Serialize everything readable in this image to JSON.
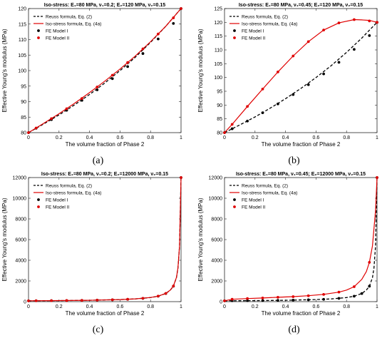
{
  "figure": {
    "captions": [
      "(a)",
      "(b)",
      "(c)",
      "(d)"
    ]
  },
  "chart_data": [
    {
      "type": "line",
      "title": "Iso-stress: E₁=80 MPa, ν₁=0.2; E₂=120 MPa, ν₂=0.15",
      "xlabel": "The volume fraction of Phase 2",
      "ylabel": "Effective Young's modulus (MPa)",
      "xlim": [
        0,
        1
      ],
      "ylim": [
        80,
        120
      ],
      "xticks": [
        0,
        0.2,
        0.4,
        0.6,
        0.8,
        1
      ],
      "xtick_labels": [
        "0",
        "0.2",
        "0.4",
        "0.6",
        "0.8",
        "1"
      ],
      "yticks": [
        80,
        85,
        90,
        95,
        100,
        105,
        110,
        115,
        120
      ],
      "ytick_labels": [
        "80",
        "85",
        "90",
        "95",
        "100",
        "105",
        "110",
        "115",
        "120"
      ],
      "grid": false,
      "legend_position": "top-left",
      "series": [
        {
          "name": "Reuss formula, Eq. (2)",
          "style": "dashed",
          "marker": "none",
          "color": "#000000",
          "x": [
            0,
            0.1,
            0.2,
            0.3,
            0.4,
            0.5,
            0.6,
            0.7,
            0.8,
            0.9,
            1
          ],
          "y": [
            80,
            82.8,
            85.7,
            88.9,
            92.3,
            96.0,
            100.0,
            104.3,
            109.1,
            114.3,
            120
          ]
        },
        {
          "name": "Iso-stress formula, Eq. (4a)",
          "style": "solid",
          "marker": "none",
          "color": "#e00000",
          "x": [
            0,
            0.1,
            0.2,
            0.3,
            0.4,
            0.5,
            0.6,
            0.7,
            0.8,
            0.9,
            1
          ],
          "y": [
            80,
            83.0,
            86.1,
            89.4,
            92.9,
            96.6,
            100.5,
            104.7,
            109.3,
            114.3,
            120
          ]
        },
        {
          "name": "FE Model I",
          "style": "none",
          "marker": "circle",
          "color": "#000000",
          "x": [
            0,
            0.05,
            0.15,
            0.25,
            0.35,
            0.45,
            0.55,
            0.65,
            0.75,
            0.85,
            0.95,
            1
          ],
          "y": [
            80,
            81.4,
            84.2,
            87.2,
            90.4,
            93.8,
            97.4,
            101.3,
            105.5,
            110.2,
            115.2,
            120
          ]
        },
        {
          "name": "FE Model II",
          "style": "none",
          "marker": "circle",
          "color": "#e00000",
          "x": [
            0,
            0.05,
            0.15,
            0.25,
            0.35,
            0.45,
            0.55,
            0.65,
            0.75,
            0.85,
            0.95,
            1
          ],
          "y": [
            80,
            81.5,
            84.5,
            87.7,
            91.0,
            94.7,
            98.5,
            102.6,
            107.0,
            111.8,
            117.0,
            120
          ]
        }
      ]
    },
    {
      "type": "line",
      "title": "Iso-stress: E₁=80 MPa, ν₁=0.45; E₂=120 MPa, ν₂=0.15",
      "xlabel": "The volume fraction of Phase 2",
      "ylabel": "Effective Young's modulus (MPa)",
      "xlim": [
        0,
        1
      ],
      "ylim": [
        80,
        125
      ],
      "xticks": [
        0,
        0.2,
        0.4,
        0.6,
        0.8,
        1
      ],
      "xtick_labels": [
        "0",
        "0.2",
        "0.4",
        "0.6",
        "0.8",
        "1"
      ],
      "yticks": [
        80,
        85,
        90,
        95,
        100,
        105,
        110,
        115,
        120,
        125
      ],
      "ytick_labels": [
        "80",
        "85",
        "90",
        "95",
        "100",
        "105",
        "110",
        "115",
        "120",
        "125"
      ],
      "grid": false,
      "legend_position": "top-left",
      "series": [
        {
          "name": "Reuss formula, Eq. (2)",
          "style": "dashed",
          "marker": "none",
          "color": "#000000",
          "x": [
            0,
            0.1,
            0.2,
            0.3,
            0.4,
            0.5,
            0.6,
            0.7,
            0.8,
            0.9,
            1
          ],
          "y": [
            80,
            82.8,
            85.7,
            88.9,
            92.3,
            96.0,
            100.0,
            104.3,
            109.1,
            114.3,
            120
          ]
        },
        {
          "name": "Iso-stress formula, Eq. (4a)",
          "style": "solid",
          "marker": "none",
          "color": "#e00000",
          "x": [
            0,
            0.05,
            0.15,
            0.25,
            0.35,
            0.45,
            0.55,
            0.65,
            0.75,
            0.85,
            0.9,
            0.95,
            1
          ],
          "y": [
            80,
            83.0,
            89.5,
            95.8,
            102.0,
            107.8,
            113.0,
            117.2,
            119.8,
            121.0,
            120.9,
            120.7,
            120
          ]
        },
        {
          "name": "FE Model I",
          "style": "none",
          "marker": "circle",
          "color": "#000000",
          "x": [
            0,
            0.05,
            0.15,
            0.25,
            0.35,
            0.45,
            0.55,
            0.65,
            0.75,
            0.85,
            0.95,
            1
          ],
          "y": [
            80,
            81.4,
            84.2,
            87.2,
            90.4,
            93.8,
            97.4,
            101.3,
            105.5,
            110.2,
            115.2,
            120
          ]
        },
        {
          "name": "FE Model II",
          "style": "none",
          "marker": "circle",
          "color": "#e00000",
          "x": [
            0,
            0.05,
            0.15,
            0.25,
            0.35,
            0.45,
            0.55,
            0.65,
            0.75,
            0.85,
            0.95,
            1
          ],
          "y": [
            80,
            83.0,
            89.5,
            95.8,
            102.0,
            107.8,
            113.0,
            117.2,
            119.8,
            121.0,
            120.5,
            120
          ]
        }
      ]
    },
    {
      "type": "line",
      "title": "Iso-stress: E₁=80 MPa, ν₁=0.2; E₂=12000 MPa, ν₂=0.15",
      "xlabel": "The volume fraction of Phase 2",
      "ylabel": "Effective Young's modulus (MPa)",
      "xlim": [
        0,
        1
      ],
      "ylim": [
        0,
        12000
      ],
      "xticks": [
        0,
        0.2,
        0.4,
        0.6,
        0.8,
        1
      ],
      "xtick_labels": [
        "0",
        "0.2",
        "0.4",
        "0.6",
        "0.8",
        "1"
      ],
      "yticks": [
        0,
        2000,
        4000,
        6000,
        8000,
        10000,
        12000
      ],
      "ytick_labels": [
        "0",
        "2000",
        "4000",
        "6000",
        "8000",
        "10000",
        "12000"
      ],
      "grid": false,
      "legend_position": "top-left",
      "series": [
        {
          "name": "Reuss formula, Eq. (2)",
          "style": "dashed",
          "marker": "none",
          "color": "#000000",
          "x": [
            0,
            0.2,
            0.4,
            0.6,
            0.7,
            0.8,
            0.85,
            0.9,
            0.93,
            0.95,
            0.97,
            0.98,
            0.99,
            1
          ],
          "y": [
            80,
            100,
            133,
            199,
            265,
            396,
            527,
            786,
            1117,
            1494,
            2325,
            3257,
            5370,
            12000
          ]
        },
        {
          "name": "Iso-stress formula, Eq. (4a)",
          "style": "solid",
          "marker": "none",
          "color": "#e00000",
          "x": [
            0,
            0.2,
            0.4,
            0.6,
            0.7,
            0.8,
            0.85,
            0.9,
            0.93,
            0.95,
            0.97,
            0.98,
            0.99,
            1
          ],
          "y": [
            80,
            101,
            134,
            201,
            268,
            400,
            532,
            793,
            1127,
            1508,
            2345,
            3280,
            5400,
            12000
          ]
        },
        {
          "name": "FE Model I",
          "style": "none",
          "marker": "circle",
          "color": "#000000",
          "x": [
            0,
            0.05,
            0.15,
            0.25,
            0.35,
            0.45,
            0.55,
            0.65,
            0.75,
            0.85,
            0.9,
            0.95,
            1
          ],
          "y": [
            80,
            84,
            94,
            106,
            122,
            144,
            176,
            226,
            316,
            527,
            786,
            1494,
            12000
          ]
        },
        {
          "name": "FE Model II",
          "style": "none",
          "marker": "circle",
          "color": "#e00000",
          "x": [
            0,
            0.05,
            0.15,
            0.25,
            0.35,
            0.45,
            0.55,
            0.65,
            0.75,
            0.85,
            0.9,
            0.95,
            1
          ],
          "y": [
            80,
            85,
            95,
            107,
            123,
            145,
            178,
            228,
            320,
            532,
            793,
            1508,
            12000
          ]
        }
      ]
    },
    {
      "type": "line",
      "title": "Iso-stress: E₁=80 MPa, ν₁=0.45; E₂=12000 MPa, ν₂=0.15",
      "xlabel": "The volume fraction of Phase 2",
      "ylabel": "Effective Young's modulus (MPa)",
      "xlim": [
        0,
        1
      ],
      "ylim": [
        0,
        12000
      ],
      "xticks": [
        0,
        0.2,
        0.4,
        0.6,
        0.8,
        1
      ],
      "xtick_labels": [
        "0",
        "0.2",
        "0.4",
        "0.6",
        "0.8",
        "1"
      ],
      "yticks": [
        0,
        2000,
        4000,
        6000,
        8000,
        10000,
        12000
      ],
      "ytick_labels": [
        "0",
        "2000",
        "4000",
        "6000",
        "8000",
        "10000",
        "12000"
      ],
      "grid": false,
      "legend_position": "top-left",
      "series": [
        {
          "name": "Reuss formula, Eq. (2)",
          "style": "dashed",
          "marker": "none",
          "color": "#000000",
          "x": [
            0,
            0.2,
            0.4,
            0.6,
            0.7,
            0.8,
            0.85,
            0.9,
            0.93,
            0.95,
            0.97,
            0.98,
            0.99,
            1
          ],
          "y": [
            80,
            100,
            133,
            199,
            265,
            396,
            527,
            786,
            1117,
            1494,
            2325,
            3257,
            5370,
            12000
          ]
        },
        {
          "name": "Iso-stress formula, Eq. (4a)",
          "style": "solid",
          "marker": "none",
          "color": "#e00000",
          "x": [
            0,
            0.05,
            0.15,
            0.25,
            0.35,
            0.45,
            0.55,
            0.65,
            0.75,
            0.8,
            0.85,
            0.9,
            0.93,
            0.95,
            0.97,
            0.99,
            1
          ],
          "y": [
            80,
            230,
            300,
            350,
            420,
            480,
            570,
            700,
            920,
            1120,
            1450,
            2150,
            2900,
            3800,
            5400,
            8800,
            12000
          ]
        },
        {
          "name": "FE Model I",
          "style": "none",
          "marker": "circle",
          "color": "#000000",
          "x": [
            0,
            0.05,
            0.15,
            0.25,
            0.35,
            0.45,
            0.55,
            0.65,
            0.75,
            0.85,
            0.9,
            0.95,
            1
          ],
          "y": [
            80,
            84,
            94,
            106,
            122,
            144,
            176,
            226,
            316,
            527,
            786,
            1494,
            12000
          ]
        },
        {
          "name": "FE Model II",
          "style": "none",
          "marker": "circle",
          "color": "#e00000",
          "x": [
            0,
            0.05,
            0.15,
            0.25,
            0.35,
            0.45,
            0.55,
            0.65,
            0.75,
            0.85,
            0.95,
            1
          ],
          "y": [
            80,
            230,
            300,
            350,
            420,
            480,
            570,
            700,
            920,
            1450,
            3800,
            12000
          ]
        }
      ]
    }
  ]
}
